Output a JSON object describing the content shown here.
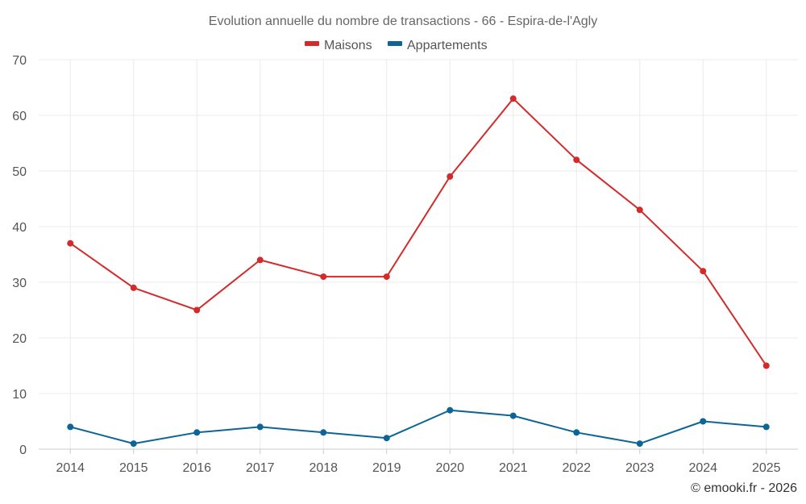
{
  "chart_data": {
    "type": "line",
    "title": "Evolution annuelle du nombre de transactions - 66 - Espira-de-l'Agly",
    "categories": [
      "2014",
      "2015",
      "2016",
      "2017",
      "2018",
      "2019",
      "2020",
      "2021",
      "2022",
      "2023",
      "2024",
      "2025"
    ],
    "series": [
      {
        "name": "Maisons",
        "color": "#d32a2a",
        "values": [
          37,
          29,
          25,
          34,
          31,
          31,
          49,
          63,
          52,
          43,
          32,
          15
        ]
      },
      {
        "name": "Appartements",
        "color": "#0d6496",
        "values": [
          4,
          1,
          3,
          4,
          3,
          2,
          7,
          6,
          3,
          1,
          5,
          4
        ]
      }
    ],
    "ylim": [
      0,
      70
    ],
    "yticks": [
      0,
      10,
      20,
      30,
      40,
      50,
      60,
      70
    ],
    "grid": true,
    "legend_position": "top-center",
    "xlabel": "",
    "ylabel": ""
  },
  "credit": "© emooki.fr - 2026"
}
